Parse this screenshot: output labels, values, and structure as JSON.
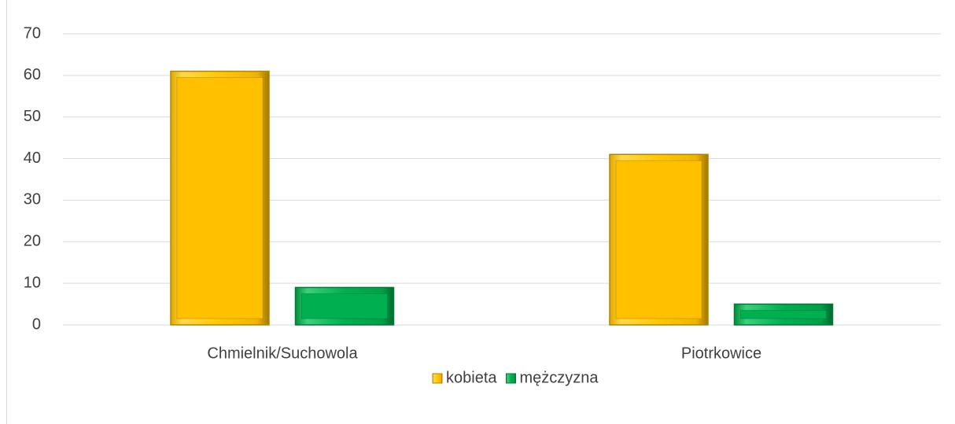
{
  "chart_data": {
    "type": "bar",
    "categories": [
      "Chmielnik/Suchowola",
      "Piotrkowice"
    ],
    "series": [
      {
        "name": "kobieta",
        "color": "#ffc000",
        "values": [
          61,
          41
        ]
      },
      {
        "name": "mężczyzna",
        "color": "#00b050",
        "values": [
          9,
          5
        ]
      }
    ],
    "ylim": [
      0,
      70
    ],
    "yticks": [
      0,
      10,
      20,
      30,
      40,
      50,
      60,
      70
    ],
    "grid": true,
    "legend": "bottom"
  }
}
